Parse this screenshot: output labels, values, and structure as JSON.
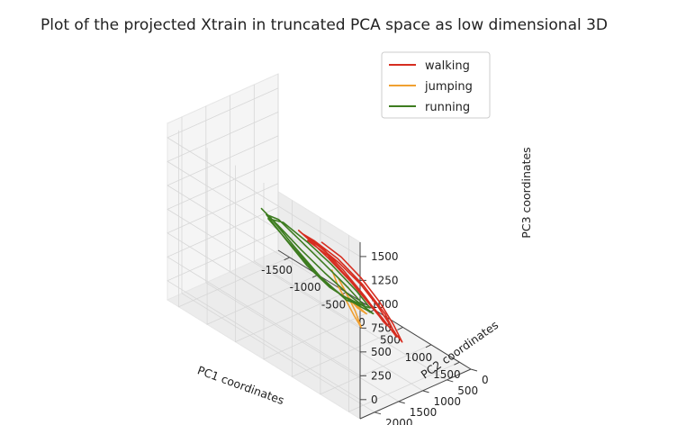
{
  "chart_data": {
    "type": "line",
    "projection": "3d",
    "title": "Plot of the projected Xtrain in truncated PCA space as low dimensional 3D",
    "xlabel": "PC1 coordinates",
    "ylabel": "PC2 coordinates",
    "zlabel": "PC3 coordinates",
    "xlim": [
      -1700,
      1700
    ],
    "ylim": [
      0,
      2300
    ],
    "zlim": [
      -200,
      1650
    ],
    "x_ticks": [
      "-1500",
      "-1000",
      "-500",
      "0",
      "500",
      "1000",
      "1500"
    ],
    "y_ticks": [
      "0",
      "500",
      "1000",
      "1500",
      "2000"
    ],
    "z_ticks": [
      "0",
      "250",
      "500",
      "750",
      "1000",
      "1250",
      "1500"
    ],
    "grid": true,
    "legend_position": "top-right",
    "series": [
      {
        "name": "walking",
        "color": "#d62d20",
        "points": [
          [
            380,
            1550,
            1000
          ],
          [
            620,
            1420,
            900
          ],
          [
            820,
            1250,
            720
          ],
          [
            980,
            1050,
            480
          ],
          [
            1100,
            900,
            250
          ],
          [
            1150,
            780,
            60
          ],
          [
            1080,
            820,
            120
          ],
          [
            900,
            980,
            380
          ],
          [
            700,
            1120,
            580
          ],
          [
            480,
            1300,
            760
          ],
          [
            280,
            1450,
            880
          ],
          [
            120,
            1560,
            960
          ],
          [
            20,
            1600,
            1000
          ],
          [
            160,
            1560,
            950
          ],
          [
            420,
            1450,
            820
          ],
          [
            680,
            1300,
            640
          ],
          [
            880,
            1120,
            420
          ],
          [
            1020,
            940,
            220
          ],
          [
            980,
            980,
            260
          ],
          [
            780,
            1120,
            480
          ],
          [
            540,
            1280,
            700
          ],
          [
            300,
            1460,
            900
          ],
          [
            80,
            1580,
            980
          ],
          [
            250,
            1540,
            960
          ],
          [
            560,
            1420,
            860
          ],
          [
            840,
            1220,
            640
          ],
          [
            1040,
            1000,
            360
          ],
          [
            1120,
            860,
            120
          ],
          [
            950,
            960,
            280
          ],
          [
            650,
            1180,
            560
          ],
          [
            360,
            1400,
            820
          ],
          [
            120,
            1540,
            920
          ]
        ]
      },
      {
        "name": "jumping",
        "color": "#f0a030",
        "points": [
          [
            520,
            1500,
            750
          ],
          [
            560,
            1420,
            580
          ],
          [
            620,
            1300,
            400
          ],
          [
            660,
            1200,
            250
          ],
          [
            700,
            1100,
            120
          ],
          [
            660,
            1180,
            300
          ],
          [
            600,
            1320,
            520
          ],
          [
            560,
            1400,
            640
          ],
          [
            620,
            1260,
            430
          ],
          [
            760,
            1250,
            380
          ],
          [
            880,
            1200,
            350
          ],
          [
            780,
            1240,
            390
          ],
          [
            640,
            1300,
            460
          ]
        ]
      },
      {
        "name": "running",
        "color": "#3d7c20",
        "points": [
          [
            -1450,
            650,
            480
          ],
          [
            -1100,
            680,
            420
          ],
          [
            -700,
            700,
            330
          ],
          [
            -300,
            680,
            230
          ],
          [
            100,
            620,
            120
          ],
          [
            420,
            520,
            30
          ],
          [
            150,
            600,
            60
          ],
          [
            -250,
            640,
            90
          ],
          [
            -650,
            640,
            170
          ],
          [
            -1050,
            620,
            300
          ],
          [
            -1400,
            600,
            420
          ],
          [
            -1150,
            640,
            470
          ],
          [
            -750,
            660,
            400
          ],
          [
            -350,
            640,
            300
          ],
          [
            50,
            600,
            180
          ],
          [
            300,
            540,
            60
          ],
          [
            -100,
            560,
            40
          ],
          [
            -500,
            580,
            100
          ],
          [
            -900,
            600,
            240
          ],
          [
            -1350,
            620,
            400
          ],
          [
            -1050,
            660,
            480
          ],
          [
            -600,
            680,
            440
          ],
          [
            -200,
            660,
            350
          ],
          [
            200,
            600,
            200
          ],
          [
            380,
            540,
            80
          ],
          [
            0,
            580,
            30
          ],
          [
            -450,
            600,
            120
          ],
          [
            -900,
            620,
            280
          ],
          [
            -1300,
            640,
            440
          ]
        ]
      }
    ]
  }
}
